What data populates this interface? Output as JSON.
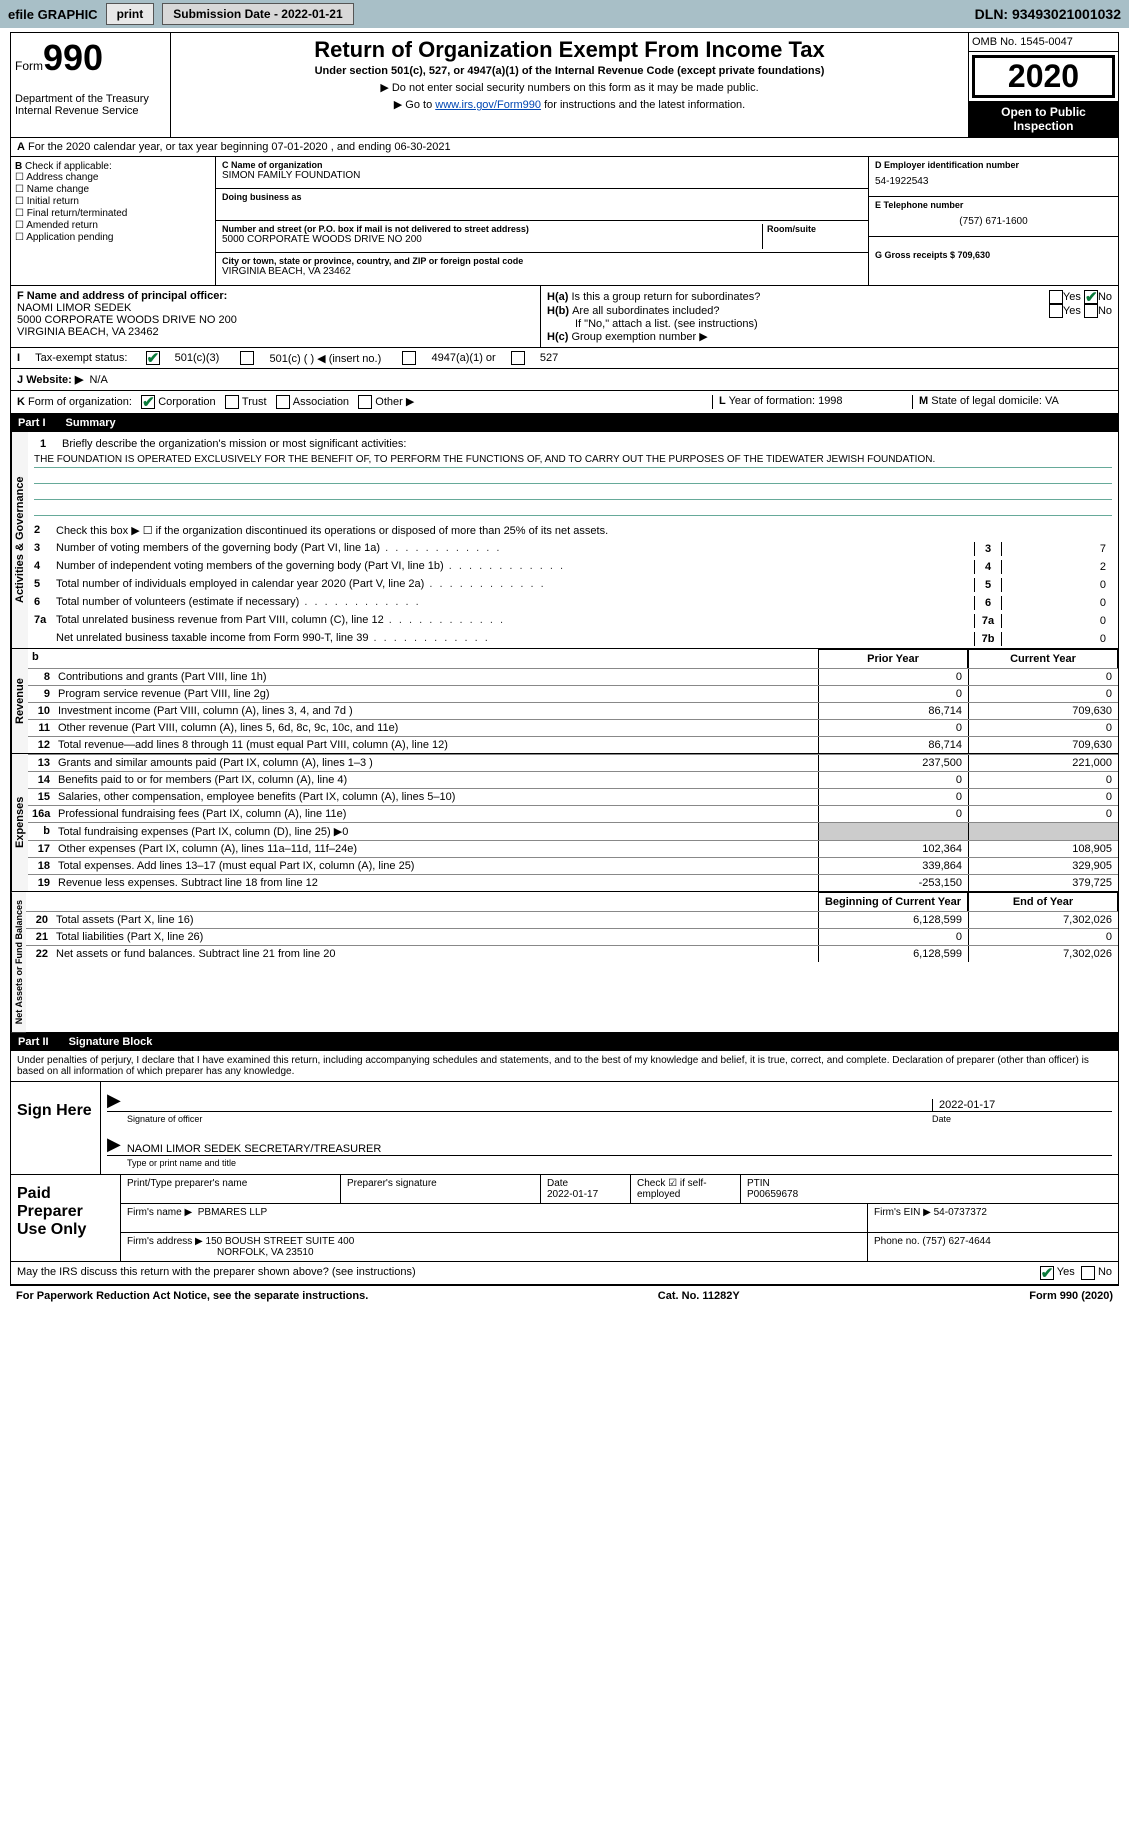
{
  "topbar": {
    "efile_label": "efile GRAPHIC",
    "print_btn": "print",
    "subdate_label": "Submission Date - 2022-01-21",
    "dln": "DLN: 93493021001032"
  },
  "header": {
    "form_prefix": "Form",
    "form_number": "990",
    "dept": "Department of the Treasury\nInternal Revenue Service",
    "title": "Return of Organization Exempt From Income Tax",
    "subtitle": "Under section 501(c), 527, or 4947(a)(1) of the Internal Revenue Code (except private foundations)",
    "sub1": "▶ Do not enter social security numbers on this form as it may be made public.",
    "sub2_pre": "▶ Go to ",
    "sub2_link": "www.irs.gov/Form990",
    "sub2_post": " for instructions and the latest information.",
    "omb": "OMB No. 1545-0047",
    "year": "2020",
    "inspect": "Open to Public Inspection"
  },
  "calyear": "For the 2020 calendar year, or tax year beginning 07-01-2020   , and ending 06-30-2021",
  "B": {
    "label": "Check if applicable:",
    "items": [
      "Address change",
      "Name change",
      "Initial return",
      "Final return/terminated",
      "Amended return",
      "Application pending"
    ]
  },
  "C": {
    "name_lbl": "C Name of organization",
    "name": "SIMON FAMILY FOUNDATION",
    "dba_lbl": "Doing business as",
    "dba": "",
    "addr_lbl": "Number and street (or P.O. box if mail is not delivered to street address)",
    "room_lbl": "Room/suite",
    "addr": "5000 CORPORATE WOODS DRIVE NO 200",
    "city_lbl": "City or town, state or province, country, and ZIP or foreign postal code",
    "city": "VIRGINIA BEACH, VA  23462"
  },
  "D": {
    "ein_lbl": "D Employer identification number",
    "ein": "54-1922543",
    "tel_lbl": "E Telephone number",
    "tel": "(757) 671-1600",
    "gross_lbl": "G Gross receipts $ 709,630"
  },
  "F": {
    "lbl": "F Name and address of principal officer:",
    "name": "NAOMI LIMOR SEDEK",
    "addr1": "5000 CORPORATE WOODS DRIVE NO 200",
    "addr2": "VIRGINIA BEACH, VA  23462"
  },
  "H": {
    "ha": "Is this a group return for subordinates?",
    "hb": "Are all subordinates included?",
    "hb_note": "If \"No,\" attach a list. (see instructions)",
    "hc": "Group exemption number ▶"
  },
  "I": {
    "lbl": "Tax-exempt status:",
    "opts": [
      "501(c)(3)",
      "501(c) (  ) ◀ (insert no.)",
      "4947(a)(1) or",
      "527"
    ]
  },
  "J": {
    "lbl": "Website: ▶",
    "val": "N/A"
  },
  "K": {
    "lbl": "Form of organization:",
    "opts": [
      "Corporation",
      "Trust",
      "Association",
      "Other ▶"
    ],
    "L": "Year of formation: 1998",
    "M": "State of legal domicile: VA"
  },
  "part1": {
    "num": "Part I",
    "title": "Summary"
  },
  "mission": {
    "lbl": "Briefly describe the organization's mission or most significant activities:",
    "text": "THE FOUNDATION IS OPERATED EXCLUSIVELY FOR THE BENEFIT OF, TO PERFORM THE FUNCTIONS OF, AND TO CARRY OUT THE PURPOSES OF THE TIDEWATER JEWISH FOUNDATION."
  },
  "line2": "Check this box ▶ ☐  if the organization discontinued its operations or disposed of more than 25% of its net assets.",
  "govlines": [
    {
      "n": "3",
      "t": "Number of voting members of the governing body (Part VI, line 1a)",
      "c": "3",
      "v": "7"
    },
    {
      "n": "4",
      "t": "Number of independent voting members of the governing body (Part VI, line 1b)",
      "c": "4",
      "v": "2"
    },
    {
      "n": "5",
      "t": "Total number of individuals employed in calendar year 2020 (Part V, line 2a)",
      "c": "5",
      "v": "0"
    },
    {
      "n": "6",
      "t": "Total number of volunteers (estimate if necessary)",
      "c": "6",
      "v": "0"
    },
    {
      "n": "7a",
      "t": "Total unrelated business revenue from Part VIII, column (C), line 12",
      "c": "7a",
      "v": "0"
    },
    {
      "n": "",
      "t": "Net unrelated business taxable income from Form 990-T, line 39",
      "c": "7b",
      "v": "0"
    }
  ],
  "colhdrs": {
    "b": "b",
    "prior": "Prior Year",
    "current": "Current Year"
  },
  "revenue": [
    {
      "n": "8",
      "t": "Contributions and grants (Part VIII, line 1h)",
      "pv": "0",
      "cv": "0"
    },
    {
      "n": "9",
      "t": "Program service revenue (Part VIII, line 2g)",
      "pv": "0",
      "cv": "0"
    },
    {
      "n": "10",
      "t": "Investment income (Part VIII, column (A), lines 3, 4, and 7d )",
      "pv": "86,714",
      "cv": "709,630"
    },
    {
      "n": "11",
      "t": "Other revenue (Part VIII, column (A), lines 5, 6d, 8c, 9c, 10c, and 11e)",
      "pv": "0",
      "cv": "0"
    },
    {
      "n": "12",
      "t": "Total revenue—add lines 8 through 11 (must equal Part VIII, column (A), line 12)",
      "pv": "86,714",
      "cv": "709,630"
    }
  ],
  "expenses": [
    {
      "n": "13",
      "t": "Grants and similar amounts paid (Part IX, column (A), lines 1–3 )",
      "pv": "237,500",
      "cv": "221,000"
    },
    {
      "n": "14",
      "t": "Benefits paid to or for members (Part IX, column (A), line 4)",
      "pv": "0",
      "cv": "0"
    },
    {
      "n": "15",
      "t": "Salaries, other compensation, employee benefits (Part IX, column (A), lines 5–10)",
      "pv": "0",
      "cv": "0"
    },
    {
      "n": "16a",
      "t": "Professional fundraising fees (Part IX, column (A), line 11e)",
      "pv": "0",
      "cv": "0"
    },
    {
      "n": "b",
      "t": "Total fundraising expenses (Part IX, column (D), line 25) ▶0",
      "pv": "",
      "cv": "",
      "shaded": true
    },
    {
      "n": "17",
      "t": "Other expenses (Part IX, column (A), lines 11a–11d, 11f–24e)",
      "pv": "102,364",
      "cv": "108,905"
    },
    {
      "n": "18",
      "t": "Total expenses. Add lines 13–17 (must equal Part IX, column (A), line 25)",
      "pv": "339,864",
      "cv": "329,905"
    },
    {
      "n": "19",
      "t": "Revenue less expenses. Subtract line 18 from line 12",
      "pv": "-253,150",
      "cv": "379,725"
    }
  ],
  "netassets_hdr": {
    "beg": "Beginning of Current Year",
    "end": "End of Year"
  },
  "netassets": [
    {
      "n": "20",
      "t": "Total assets (Part X, line 16)",
      "pv": "6,128,599",
      "cv": "7,302,026"
    },
    {
      "n": "21",
      "t": "Total liabilities (Part X, line 26)",
      "pv": "0",
      "cv": "0"
    },
    {
      "n": "22",
      "t": "Net assets or fund balances. Subtract line 21 from line 20",
      "pv": "6,128,599",
      "cv": "7,302,026"
    }
  ],
  "part2": {
    "num": "Part II",
    "title": "Signature Block"
  },
  "sig": {
    "decl": "Under penalties of perjury, I declare that I have examined this return, including accompanying schedules and statements, and to the best of my knowledge and belief, it is true, correct, and complete. Declaration of preparer (other than officer) is based on all information of which preparer has any knowledge.",
    "sign_here": "Sign Here",
    "off_lbl": "Signature of officer",
    "date_lbl": "Date",
    "date": "2022-01-17",
    "name": "NAOMI LIMOR SEDEK  SECRETARY/TREASURER",
    "name_lbl": "Type or print name and title"
  },
  "prep": {
    "title": "Paid Preparer Use Only",
    "print_lbl": "Print/Type preparer's name",
    "sig_lbl": "Preparer's signature",
    "date_lbl": "Date",
    "date": "2022-01-17",
    "check_lbl": "Check ☑ if self-employed",
    "ptin_lbl": "PTIN",
    "ptin": "P00659678",
    "firm_name_lbl": "Firm's name    ▶",
    "firm_name": "PBMARES LLP",
    "firm_ein_lbl": "Firm's EIN ▶",
    "firm_ein": "54-0737372",
    "firm_addr_lbl": "Firm's address ▶",
    "firm_addr1": "150 BOUSH STREET SUITE 400",
    "firm_addr2": "NORFOLK, VA  23510",
    "phone_lbl": "Phone no.",
    "phone": "(757) 627-4644"
  },
  "discuss": "May the IRS discuss this return with the preparer shown above? (see instructions)",
  "footer": {
    "left": "For Paperwork Reduction Act Notice, see the separate instructions.",
    "mid": "Cat. No. 11282Y",
    "right": "Form 990 (2020)"
  },
  "side": {
    "gov": "Activities & Governance",
    "rev": "Revenue",
    "exp": "Expenses",
    "net": "Net Assets or Fund Balances"
  },
  "yesno": {
    "yes": "Yes",
    "no": "No"
  }
}
